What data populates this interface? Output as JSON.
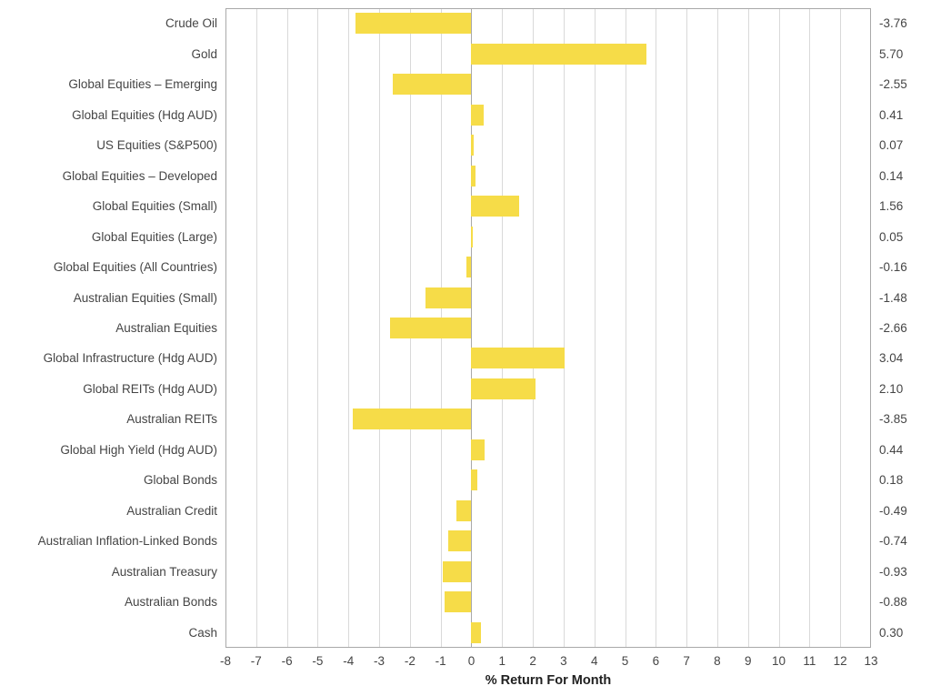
{
  "chart_data": {
    "type": "bar",
    "orientation": "horizontal",
    "categories": [
      "Crude Oil",
      "Gold",
      "Global Equities – Emerging",
      "Global Equities (Hdg AUD)",
      "US Equities (S&P500)",
      "Global Equities – Developed",
      "Global Equities (Small)",
      "Global Equities (Large)",
      "Global Equities (All Countries)",
      "Australian Equities (Small)",
      "Australian Equities",
      "Global Infrastructure (Hdg AUD)",
      "Global REITs (Hdg AUD)",
      "Australian REITs",
      "Global High Yield (Hdg AUD)",
      "Global Bonds",
      "Australian Credit",
      "Australian Inflation-Linked Bonds",
      "Australian Treasury",
      "Australian Bonds",
      "Cash"
    ],
    "values": [
      -3.76,
      5.7,
      -2.55,
      0.41,
      0.07,
      0.14,
      1.56,
      0.05,
      -0.16,
      -1.48,
      -2.66,
      3.04,
      2.1,
      -3.85,
      0.44,
      0.18,
      -0.49,
      -0.74,
      -0.93,
      -0.88,
      0.3
    ],
    "value_labels": [
      "-3.76",
      "5.70",
      "-2.55",
      "0.41",
      "0.07",
      "0.14",
      "1.56",
      "0.05",
      "-0.16",
      "-1.48",
      "-2.66",
      "3.04",
      "2.10",
      "-3.85",
      "0.44",
      "0.18",
      "-0.49",
      "-0.74",
      "-0.93",
      "-0.88",
      "0.30"
    ],
    "xlabel": "% Return For Month",
    "xlim": [
      -8,
      13
    ],
    "x_ticks": [
      -8,
      -7,
      -6,
      -5,
      -4,
      -3,
      -2,
      -1,
      0,
      1,
      2,
      3,
      4,
      5,
      6,
      7,
      8,
      9,
      10,
      11,
      12,
      13
    ],
    "grid": true,
    "legend": false,
    "bar_color": "#f6dc48",
    "gridline_color": "#d9d9d9",
    "axis_color": "#a9a9a9"
  }
}
